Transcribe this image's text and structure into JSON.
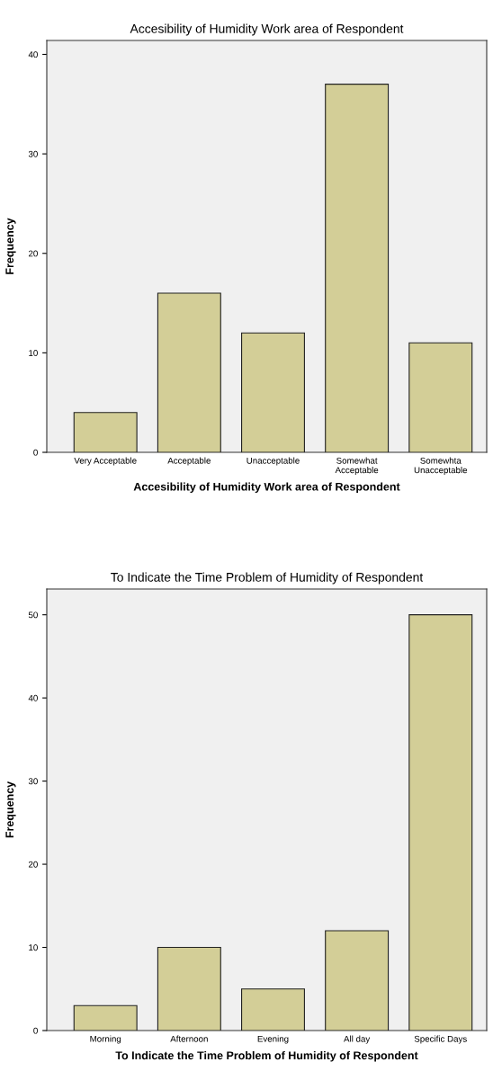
{
  "chart_data": [
    {
      "type": "bar",
      "title": "Accesibility of Humidity Work area of Respondent",
      "xlabel": "Accesibility of Humidity Work area of Respondent",
      "ylabel": "Frequency",
      "categories": [
        "Very Acceptable",
        "Acceptable",
        "Unacceptable",
        "Somewhat\nAcceptable",
        "Somewhta\nUnacceptable"
      ],
      "values": [
        4,
        16,
        12,
        37,
        11
      ],
      "color": "#d3ce97",
      "ylim": [
        0,
        41.4
      ],
      "yticks": [
        0,
        10,
        20,
        30,
        40
      ],
      "grid": false,
      "legend": false
    },
    {
      "type": "bar",
      "title": "To Indicate the Time Problem of Humidity of Respondent",
      "xlabel": "To Indicate the Time Problem of Humidity of Respondent",
      "ylabel": "Frequency",
      "categories": [
        "Morning",
        "Afternoon",
        "Evening",
        "All day",
        "Specific Days"
      ],
      "values": [
        3,
        10,
        5,
        12,
        50
      ],
      "color": "#d3ce97",
      "ylim": [
        0,
        53.1
      ],
      "yticks": [
        0,
        10,
        20,
        30,
        40,
        50
      ],
      "grid": false,
      "legend": false
    }
  ]
}
